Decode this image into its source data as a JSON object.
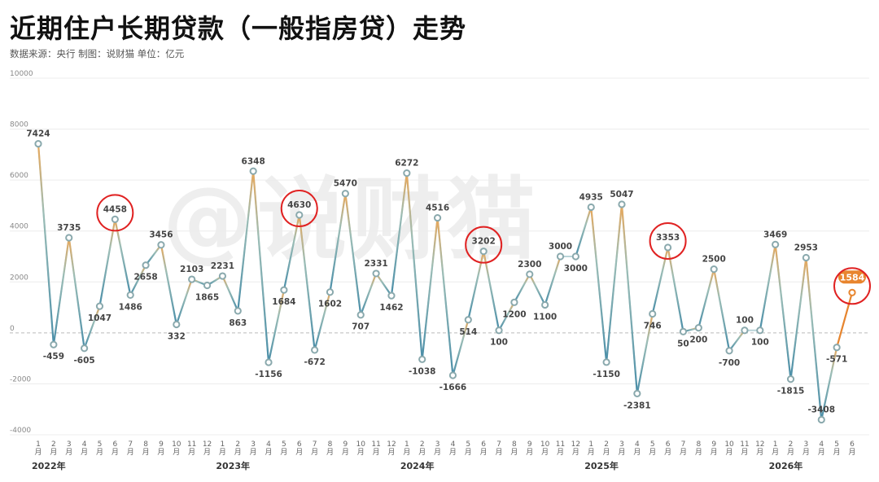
{
  "header": {
    "title": "近期住户长期贷款（一般指房贷）走势",
    "subtitle": "数据来源：央行    制图：说财猫    单位：亿元"
  },
  "watermark": "@说财猫",
  "chart_data": {
    "type": "line",
    "title": "近期住户长期贷款（一般指房贷）走势",
    "ylim": [
      -4000,
      10000
    ],
    "yticks": [
      -4000,
      -2000,
      0,
      2000,
      4000,
      6000,
      8000,
      10000
    ],
    "grid": true,
    "month_labels": [
      "1月",
      "2月",
      "3月",
      "4月",
      "5月",
      "6月",
      "7月",
      "8月",
      "9月",
      "10月",
      "11月",
      "12月",
      "1月",
      "2月",
      "3月",
      "4月",
      "5月",
      "6月",
      "7月",
      "8月",
      "9月",
      "10月",
      "11月",
      "12月",
      "1月",
      "2月",
      "3月",
      "4月",
      "5月",
      "6月",
      "7月",
      "8月",
      "9月",
      "10月",
      "11月",
      "12月",
      "1月",
      "2月",
      "3月",
      "4月",
      "5月",
      "6月",
      "7月",
      "8月",
      "9月",
      "10月",
      "11月",
      "12月",
      "1月",
      "2月",
      "3月",
      "4月",
      "5月",
      "6月"
    ],
    "years": [
      {
        "label": "2022年",
        "start_index": 0
      },
      {
        "label": "2023年",
        "start_index": 12
      },
      {
        "label": "2024年",
        "start_index": 24
      },
      {
        "label": "2025年",
        "start_index": 36
      },
      {
        "label": "2026年",
        "start_index": 48
      }
    ],
    "series": [
      {
        "values": [
          7424,
          -459,
          3735,
          -605,
          1047,
          4458,
          1486,
          2658,
          3456,
          332,
          2103,
          1865,
          2231,
          863,
          6348,
          -1156,
          1684,
          4630,
          -672,
          1602,
          5470,
          707,
          2331,
          1462,
          6272,
          -1038,
          4516,
          -1666,
          514,
          3202,
          100,
          1200,
          2300,
          1100,
          3000,
          3000,
          4935,
          -1150,
          5047,
          -2381,
          746,
          3353,
          50,
          200,
          2500,
          -700,
          100,
          100,
          3469,
          -1815,
          2953,
          -3408,
          -571,
          1584
        ],
        "data_labels": [
          "7424",
          "-459",
          "3735",
          "-605",
          "1047",
          "4458",
          "1486",
          "2658",
          "3456",
          "332",
          "2103",
          "1865",
          "2231",
          "863",
          "6348",
          "-1156",
          "1684",
          "4630",
          "-672",
          "1602",
          "5470",
          "707",
          "2331",
          "1462",
          "6272",
          "-1038",
          "4516",
          "-1666",
          "514",
          "3202",
          "100",
          "1200",
          "2300",
          "1100",
          "3000",
          "3000",
          "4935",
          "-1150",
          "5047",
          "-2381",
          "746",
          "3353",
          "50",
          "200",
          "2500",
          "-700",
          "100",
          "100",
          "3469",
          "-1815",
          "2953",
          "-3408",
          "-571",
          "1584"
        ]
      }
    ],
    "circled_indices": [
      5,
      17,
      29,
      41,
      53
    ],
    "highlight_index": 53,
    "colors": {
      "line": "#7fb0b8",
      "peak": "#f0a64a",
      "highlight": "#e8852e",
      "circle": "#e02222",
      "marker_fill": "#ffffff",
      "marker_stroke": "#8aa9ad"
    }
  }
}
